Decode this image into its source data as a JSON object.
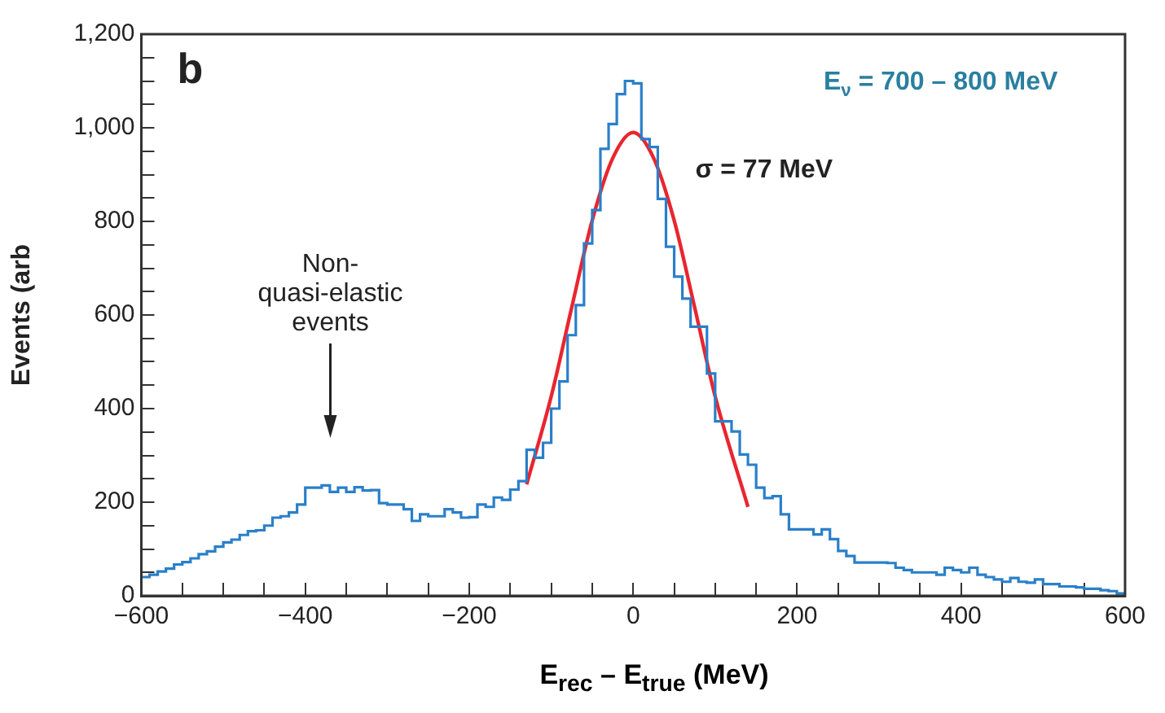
{
  "chart_data": {
    "type": "histogram",
    "xlabel": "E$_{rec}$ – E$_{true}$ (MeV)",
    "ylabel": "Events (arb",
    "xlim": [
      -600,
      600
    ],
    "ylim": [
      0,
      1200
    ],
    "xticks": [
      {
        "value": -600,
        "label": "−600"
      },
      {
        "value": -550,
        "label": null
      },
      {
        "value": -500,
        "label": null
      },
      {
        "value": -450,
        "label": null
      },
      {
        "value": -400,
        "label": "−400"
      },
      {
        "value": -350,
        "label": null
      },
      {
        "value": -300,
        "label": null
      },
      {
        "value": -250,
        "label": null
      },
      {
        "value": -200,
        "label": "−200"
      },
      {
        "value": -150,
        "label": null
      },
      {
        "value": -100,
        "label": null
      },
      {
        "value": -50,
        "label": null
      },
      0,
      {
        "value": 50,
        "label": null
      },
      {
        "value": 100,
        "label": null
      },
      {
        "value": 150,
        "label": null
      },
      200,
      {
        "value": 250,
        "label": null
      },
      {
        "value": 300,
        "label": null
      },
      {
        "value": 350,
        "label": null
      },
      400,
      {
        "value": 450,
        "label": null
      },
      {
        "value": 500,
        "label": null
      },
      {
        "value": 550,
        "label": null
      },
      600
    ],
    "yticks": [
      0,
      {
        "value": 50,
        "label": null
      },
      {
        "value": 100,
        "label": null
      },
      {
        "value": 150,
        "label": null
      },
      200,
      {
        "value": 250,
        "label": null
      },
      {
        "value": 300,
        "label": null
      },
      {
        "value": 350,
        "label": null
      },
      400,
      {
        "value": 450,
        "label": null
      },
      {
        "value": 500,
        "label": null
      },
      {
        "value": 550,
        "label": null
      },
      600,
      {
        "value": 650,
        "label": null
      },
      {
        "value": 700,
        "label": null
      },
      {
        "value": 750,
        "label": null
      },
      800,
      {
        "value": 850,
        "label": null
      },
      {
        "value": 900,
        "label": null
      },
      {
        "value": 950,
        "label": null
      },
      {
        "value": 1000,
        "label": "1,000"
      },
      {
        "value": 1050,
        "label": null
      },
      {
        "value": 1100,
        "label": null
      },
      {
        "value": 1150,
        "label": null
      },
      {
        "value": 1200,
        "label": "1,200"
      }
    ],
    "grid": false,
    "legend": false,
    "series": [
      {
        "type": "histogram",
        "color": "#2a7fc9",
        "bins": [
          -600,
          -590,
          -580,
          -570,
          -560,
          -550,
          -540,
          -530,
          -520,
          -510,
          -500,
          -490,
          -480,
          -470,
          -460,
          -450,
          -440,
          -430,
          -420,
          -410,
          -400,
          -390,
          -380,
          -370,
          -360,
          -350,
          -340,
          -330,
          -320,
          -310,
          -300,
          -290,
          -280,
          -270,
          -260,
          -250,
          -240,
          -230,
          -220,
          -210,
          -200,
          -190,
          -180,
          -170,
          -160,
          -150,
          -140,
          -130,
          -120,
          -110,
          -100,
          -90,
          -80,
          -70,
          -60,
          -50,
          -40,
          -30,
          -20,
          -10,
          0,
          10,
          20,
          30,
          40,
          50,
          60,
          70,
          80,
          90,
          100,
          110,
          120,
          130,
          140,
          150,
          160,
          170,
          180,
          190,
          200,
          210,
          220,
          230,
          240,
          250,
          260,
          270,
          280,
          290,
          300,
          310,
          320,
          330,
          340,
          350,
          360,
          370,
          380,
          390,
          400,
          410,
          420,
          430,
          440,
          450,
          460,
          470,
          480,
          490,
          500,
          510,
          520,
          530,
          540,
          550,
          560,
          570,
          580,
          590,
          600
        ],
        "values": [
          40,
          45,
          52,
          58,
          67,
          72,
          80,
          89,
          95,
          105,
          114,
          120,
          130,
          138,
          140,
          150,
          167,
          170,
          178,
          195,
          231,
          231,
          236,
          222,
          231,
          222,
          232,
          225,
          226,
          198,
          195,
          195,
          185,
          160,
          174,
          170,
          170,
          185,
          178,
          167,
          168,
          195,
          190,
          210,
          205,
          227,
          245,
          312,
          295,
          327,
          400,
          458,
          557,
          621,
          753,
          824,
          955,
          1008,
          1072,
          1100,
          1095,
          976,
          959,
          848,
          746,
          682,
          635,
          575,
          575,
          475,
          373,
          373,
          351,
          302,
          280,
          231,
          209,
          213,
          174,
          142,
          142,
          142,
          131,
          142,
          121,
          96,
          85,
          71,
          71,
          71,
          71,
          70,
          60,
          55,
          50,
          50,
          50,
          45,
          60,
          55,
          50,
          60,
          45,
          40,
          35,
          30,
          38,
          30,
          28,
          35,
          25,
          25,
          20,
          20,
          18,
          15,
          15,
          12,
          10,
          5
        ]
      },
      {
        "type": "line",
        "color": "#e8262f",
        "x": [
          -130,
          -100,
          -75,
          -50,
          -25,
          0,
          25,
          50,
          75,
          100,
          140
        ],
        "values": [
          238,
          426,
          616,
          802,
          935,
          990,
          935,
          802,
          616,
          426,
          190
        ]
      }
    ],
    "annotations": [
      "b",
      "E$_{ν}$ = 700 – 800 MeV",
      "σ = 77 MeV",
      "Non-\nquasi-elastic\nevents"
    ]
  }
}
